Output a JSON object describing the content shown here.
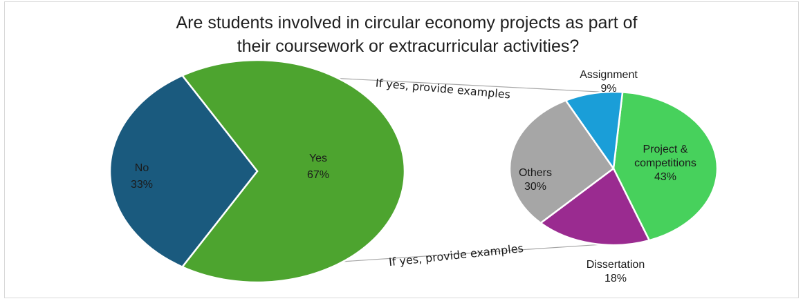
{
  "chart_data": {
    "type": "pie",
    "title_lines": [
      "Are students involved in circular economy projects as part of",
      "their coursework or extracurricular activities?"
    ],
    "main_pie": {
      "slices": [
        {
          "label": "No",
          "percent_label": "33%",
          "value": 33,
          "color": "#1a5a7e"
        },
        {
          "label": "Yes",
          "percent_label": "67%",
          "value": 67,
          "color": "#4da42f"
        }
      ]
    },
    "secondary_pie": {
      "slices": [
        {
          "label_lines": [
            "Project &",
            "competitions"
          ],
          "percent_label": "43%",
          "value": 43,
          "color": "#47d15c"
        },
        {
          "label_lines": [
            "Dissertation"
          ],
          "percent_label": "18%",
          "value": 18,
          "color": "#9a2b90"
        },
        {
          "label_lines": [
            "Others"
          ],
          "percent_label": "30%",
          "value": 30,
          "color": "#a6a6a6"
        },
        {
          "label_lines": [
            "Assignment"
          ],
          "percent_label": "9%",
          "value": 9,
          "color": "#1a9ed8"
        }
      ]
    },
    "connector_labels": {
      "top": "If yes, provide examples",
      "bottom": "If yes, provide examples"
    },
    "connector_color": "#a6a6a6",
    "slice_border_color": "#ffffff"
  }
}
